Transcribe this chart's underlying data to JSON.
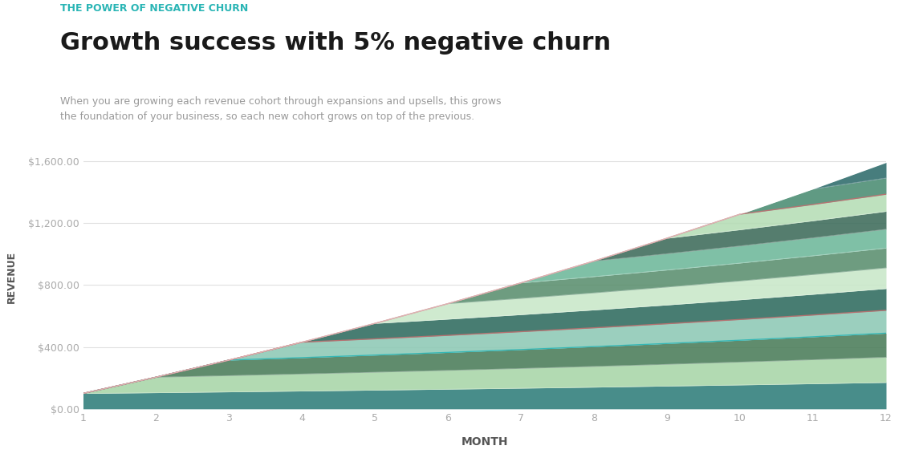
{
  "title": "Growth success with 5% negative churn",
  "subtitle": "THE POWER OF NEGATIVE CHURN",
  "description": "When you are growing each revenue cohort through expansions and upsells, this grows\nthe foundation of your business, so each new cohort grows on top of the previous.",
  "xlabel": "MONTH",
  "ylabel": "REVENUE",
  "months": 12,
  "initial_cohort_value": 100,
  "negative_churn_rate": 0.05,
  "num_cohorts": 12,
  "yticks": [
    0,
    400,
    800,
    1200,
    1600
  ],
  "ytick_labels": [
    "$0.00",
    "$400.00",
    "$800.00",
    "$1,200.00",
    "$1,600.00"
  ],
  "ylim": [
    0,
    1700
  ],
  "cohort_colors": [
    "#2e7d7a",
    "#a8d5a8",
    "#4a7c59",
    "#8dc9b5",
    "#2e6b5e",
    "#c9e8c9",
    "#5a8f6e",
    "#6db89a",
    "#3d6b5a",
    "#b5ddb5",
    "#4a8c72",
    "#2d6b6b"
  ],
  "separator_color": "#c07070",
  "teal_line_color": "#2ab5b5",
  "background_color": "#ffffff",
  "title_color": "#1a1a1a",
  "subtitle_color": "#2ab5b5",
  "axis_label_color": "#555555",
  "tick_color": "#aaaaaa",
  "grid_color": "#e0e0e0",
  "description_color": "#999999"
}
